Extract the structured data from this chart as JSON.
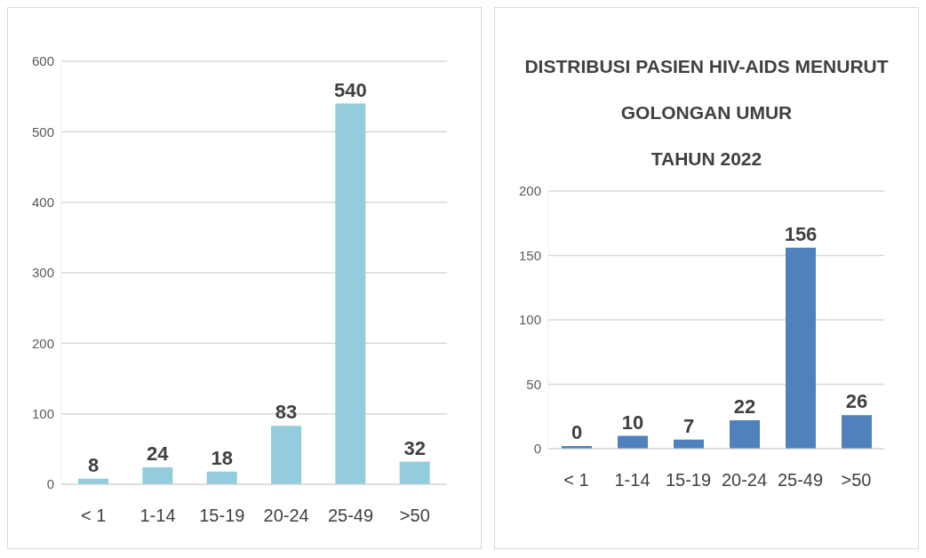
{
  "chart_data": [
    {
      "type": "bar",
      "categories": [
        "< 1",
        "1-14",
        "15-19",
        "20-24",
        "25-49",
        ">50"
      ],
      "values": [
        8,
        24,
        18,
        83,
        540,
        32
      ],
      "color": "#93cddd",
      "ylim": [
        0,
        600
      ],
      "yticks": [
        0,
        100,
        200,
        300,
        400,
        500,
        600
      ],
      "grid": "y",
      "data_labels": true
    },
    {
      "type": "bar",
      "title": "DISTRIBUSI PASIEN HIV-AIDS MENURUT\nGOLONGAN UMUR\nTAHUN 2022",
      "categories": [
        "< 1",
        "1-14",
        "15-19",
        "20-24",
        "25-49",
        ">50"
      ],
      "values": [
        0,
        10,
        7,
        22,
        156,
        26
      ],
      "color": "#4f81bd",
      "ylim": [
        0,
        200
      ],
      "yticks": [
        0,
        50,
        100,
        150,
        200
      ],
      "grid": "y",
      "data_labels": true
    }
  ]
}
